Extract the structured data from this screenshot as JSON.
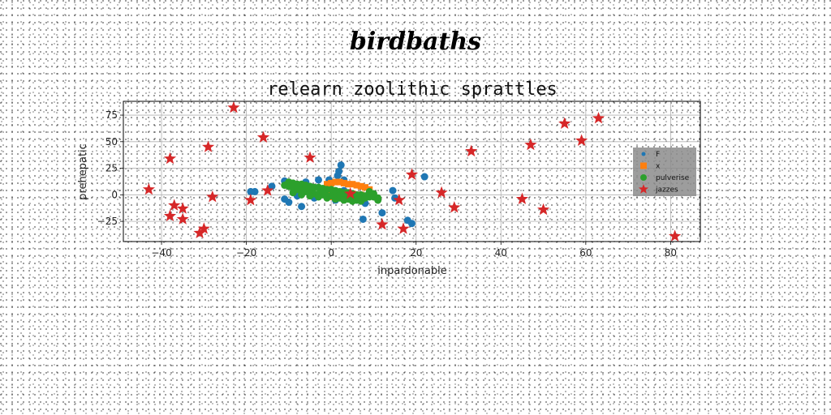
{
  "page": {
    "suptitle": "birdbaths"
  },
  "chart_data": {
    "type": "scatter",
    "title": "relearn zoolithic sprattles",
    "xlabel": "inpardonable",
    "ylabel": "prehepatic",
    "xlim": [
      -49,
      87
    ],
    "ylim": [
      -44,
      88
    ],
    "xticks": [
      -40,
      -20,
      0,
      20,
      40,
      60,
      80
    ],
    "yticks": [
      -25,
      0,
      25,
      50,
      75
    ],
    "grid": true,
    "legend": {
      "position": "right",
      "entries": [
        "F",
        "x",
        "pulverise",
        "jazzes"
      ]
    },
    "series": [
      {
        "name": "F",
        "marker": "circle",
        "color": "#1f77b4",
        "points": [
          [
            2.3,
            28
          ],
          [
            1.8,
            22
          ],
          [
            1.5,
            18
          ],
          [
            -0.5,
            14
          ],
          [
            3,
            14
          ],
          [
            -3,
            14
          ],
          [
            -6,
            12
          ],
          [
            -10,
            10
          ],
          [
            -11,
            13
          ],
          [
            -14,
            8
          ],
          [
            -8,
            -1
          ],
          [
            -5,
            2
          ],
          [
            -11,
            -4
          ],
          [
            -10,
            -7
          ],
          [
            -7,
            -11
          ],
          [
            -18,
            3
          ],
          [
            -19,
            3
          ],
          [
            4,
            -2
          ],
          [
            6,
            -5
          ],
          [
            8,
            -8
          ],
          [
            7.5,
            -23
          ],
          [
            12,
            -17
          ],
          [
            14.5,
            4
          ],
          [
            15,
            -3
          ],
          [
            18,
            -24
          ],
          [
            19,
            -27
          ],
          [
            22,
            17
          ],
          [
            1,
            -5
          ],
          [
            5,
            0
          ],
          [
            3,
            4
          ],
          [
            -4,
            -3
          ]
        ]
      },
      {
        "name": "x",
        "marker": "square",
        "color": "#ff7f0e",
        "points": [
          [
            -1,
            10
          ],
          [
            0,
            11
          ],
          [
            1,
            12
          ],
          [
            2,
            12
          ],
          [
            3,
            11
          ],
          [
            4,
            10
          ],
          [
            5,
            10
          ],
          [
            6,
            9
          ],
          [
            7,
            8
          ],
          [
            8,
            7
          ],
          [
            9,
            5
          ],
          [
            -1,
            4
          ],
          [
            1,
            3
          ],
          [
            3,
            2
          ],
          [
            5,
            1
          ],
          [
            7,
            0
          ],
          [
            8.5,
            -2
          ],
          [
            -1,
            -1
          ],
          [
            0.5,
            -2
          ]
        ]
      },
      {
        "name": "pulverise",
        "marker": "circle",
        "color": "#2ca02c",
        "points": [
          [
            -10,
            12
          ],
          [
            -9,
            11
          ],
          [
            -8,
            10
          ],
          [
            -7,
            10
          ],
          [
            -6,
            9
          ],
          [
            -5,
            8
          ],
          [
            -4,
            7
          ],
          [
            -3,
            7
          ],
          [
            -2,
            6
          ],
          [
            -1,
            5
          ],
          [
            0,
            5
          ],
          [
            1,
            4
          ],
          [
            2,
            3
          ],
          [
            3,
            2
          ],
          [
            4,
            2
          ],
          [
            5,
            1
          ],
          [
            6,
            0
          ],
          [
            7,
            0
          ],
          [
            8,
            -1
          ],
          [
            9,
            -2
          ],
          [
            10,
            -2
          ],
          [
            11,
            -3
          ],
          [
            -10,
            8
          ],
          [
            -9,
            6
          ],
          [
            -8,
            5
          ],
          [
            -7,
            4
          ],
          [
            -6,
            3
          ],
          [
            -5,
            2
          ],
          [
            -4,
            1
          ],
          [
            -3,
            1
          ],
          [
            -2,
            0
          ],
          [
            -1,
            -1
          ],
          [
            0,
            -1
          ],
          [
            1,
            -2
          ],
          [
            2,
            -3
          ],
          [
            3,
            -3
          ],
          [
            4,
            -4
          ],
          [
            5,
            -5
          ],
          [
            6,
            -5
          ],
          [
            7,
            -6
          ],
          [
            -9,
            2
          ],
          [
            -7,
            0
          ],
          [
            -5,
            -1
          ],
          [
            -3,
            -2
          ],
          [
            -1,
            -3
          ],
          [
            1,
            -4
          ],
          [
            3,
            -5
          ],
          [
            5,
            -6
          ],
          [
            8,
            -3
          ],
          [
            10,
            1
          ],
          [
            11,
            -5
          ],
          [
            -11,
            9
          ],
          [
            -6,
            6
          ],
          [
            -2,
            3
          ],
          [
            2,
            0
          ],
          [
            6,
            -2
          ],
          [
            9,
            3
          ]
        ]
      },
      {
        "name": "jazzes",
        "marker": "star",
        "color": "#d62728",
        "points": [
          [
            -23,
            82
          ],
          [
            -16,
            54
          ],
          [
            -29,
            45
          ],
          [
            -38,
            34
          ],
          [
            -43,
            5
          ],
          [
            -37,
            -10
          ],
          [
            -35,
            -13
          ],
          [
            -35,
            -23
          ],
          [
            -38,
            -20
          ],
          [
            -30,
            -32
          ],
          [
            -31,
            -36
          ],
          [
            -28,
            -2
          ],
          [
            -19,
            -5
          ],
          [
            -15,
            4
          ],
          [
            -5,
            35
          ],
          [
            4.5,
            1
          ],
          [
            12,
            -28
          ],
          [
            16,
            -5
          ],
          [
            17,
            -32
          ],
          [
            19,
            19
          ],
          [
            26,
            2
          ],
          [
            29,
            -12
          ],
          [
            33,
            41
          ],
          [
            45,
            -4
          ],
          [
            47,
            47
          ],
          [
            50,
            -14
          ],
          [
            55,
            67
          ],
          [
            59,
            51
          ],
          [
            63,
            72
          ],
          [
            81,
            -39
          ]
        ]
      }
    ]
  }
}
